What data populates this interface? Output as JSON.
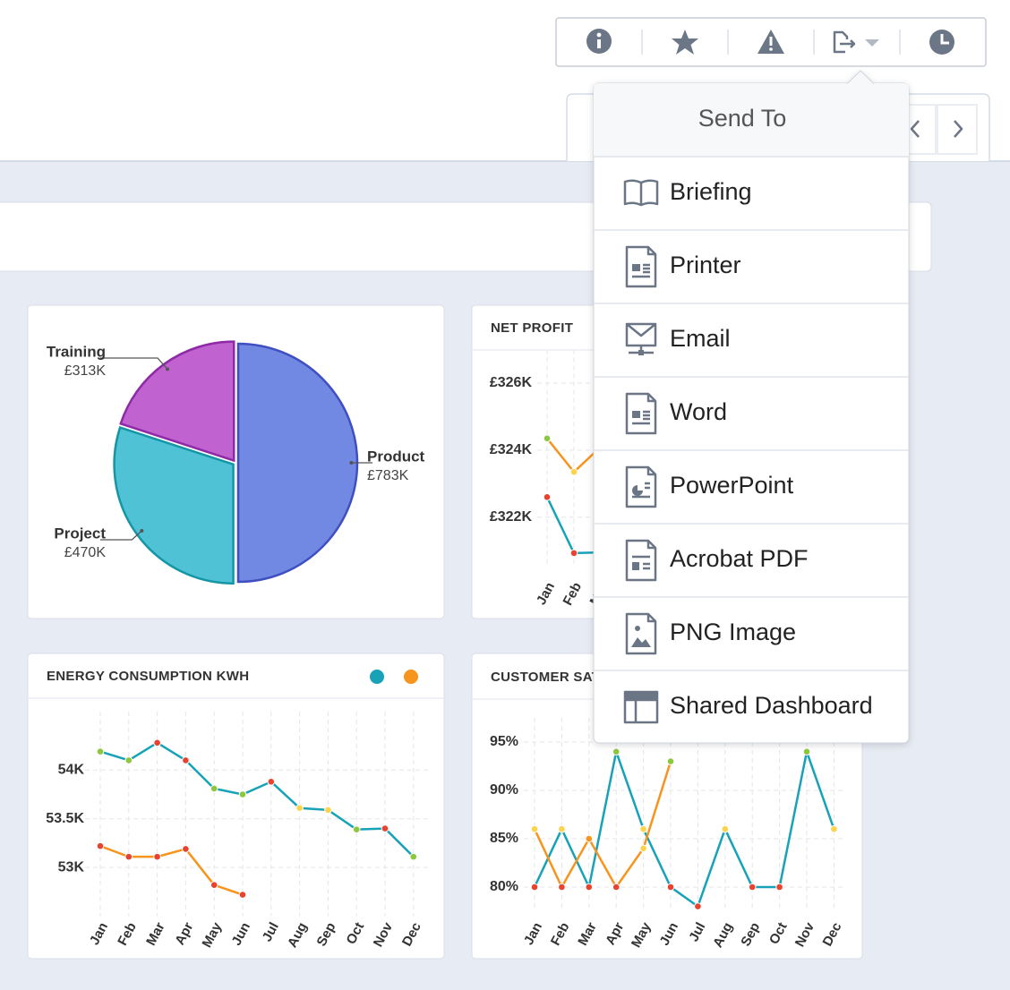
{
  "menu": {
    "title": "Send To",
    "items": [
      "Briefing",
      "Printer",
      "Email",
      "Word",
      "PowerPoint",
      "Acrobat PDF",
      "PNG Image",
      "Shared Dashboard"
    ]
  },
  "chart_data": [
    {
      "type": "pie",
      "categories": [
        "Product",
        "Project",
        "Training"
      ],
      "values": [
        783000,
        470000,
        313000
      ],
      "value_labels": [
        "£783K",
        "£470K",
        "£313K"
      ],
      "colors": [
        "#7189e3",
        "#4fc3d5",
        "#c062d0"
      ],
      "stroke_colors": [
        "#3f4fc0",
        "#1596a6",
        "#8e2aa6"
      ]
    },
    {
      "type": "line",
      "title": "NET PROFIT",
      "categories": [
        "Jan",
        "Feb",
        "Mar"
      ],
      "series": [
        {
          "color": "#f7941d",
          "values": [
            324350,
            323350,
            324100
          ],
          "point_colors": [
            "#8dc63f",
            "#fcd34d",
            "#fcd34d"
          ]
        },
        {
          "color": "#17a2b8",
          "values": [
            322600,
            320930,
            320950
          ],
          "point_colors": [
            "#e8432e",
            "#e8432e",
            "#e8432e"
          ]
        }
      ],
      "ylim": [
        320500,
        327000
      ],
      "yticks": [
        {
          "value": 322000,
          "label": "£322K"
        },
        {
          "value": 324000,
          "label": "£324K"
        },
        {
          "value": 326000,
          "label": "£326K"
        }
      ],
      "grid": true
    },
    {
      "type": "line",
      "title": "ENERGY CONSUMPTION KWH",
      "categories": [
        "Jan",
        "Feb",
        "Mar",
        "Apr",
        "May",
        "Jun",
        "Jul",
        "Aug",
        "Sep",
        "Oct",
        "Nov",
        "Dec"
      ],
      "series": [
        {
          "color": "#17a2b8",
          "values": [
            54190,
            54100,
            54280,
            54100,
            53810,
            53750,
            53880,
            53610,
            53590,
            53390,
            53400,
            53110
          ],
          "point_colors": [
            "#8dc63f",
            "#8dc63f",
            "#e8432e",
            "#e8432e",
            "#8dc63f",
            "#8dc63f",
            "#e8432e",
            "#fcd34d",
            "#fcd34d",
            "#8dc63f",
            "#e8432e",
            "#8dc63f"
          ]
        },
        {
          "color": "#f7941d",
          "values": [
            53220,
            53110,
            53110,
            53190,
            52820,
            52720,
            null,
            null,
            null,
            null,
            null,
            null
          ],
          "point_colors": [
            "#e8432e",
            "#e8432e",
            "#e8432e",
            "#e8432e",
            "#e8432e",
            "#e8432e",
            null,
            null,
            null,
            null,
            null,
            null
          ]
        }
      ],
      "ylim": [
        52500,
        54600
      ],
      "yticks": [
        {
          "value": 53000,
          "label": "53K"
        },
        {
          "value": 53500,
          "label": "53.5K"
        },
        {
          "value": 54000,
          "label": "54K"
        }
      ],
      "grid": true,
      "legend": "top-right"
    },
    {
      "type": "line",
      "title": "CUSTOMER SAT",
      "categories": [
        "Jan",
        "Feb",
        "Mar",
        "Apr",
        "May",
        "Jun",
        "Jul",
        "Aug",
        "Sep",
        "Oct",
        "Nov",
        "Dec"
      ],
      "series": [
        {
          "color": "#17a2b8",
          "values": [
            80,
            86,
            80,
            94,
            86,
            80,
            78,
            86,
            80,
            80,
            94,
            86
          ],
          "point_colors": [
            "#e8432e",
            "#fcd34d",
            "#e8432e",
            "#8dc63f",
            "#fcd34d",
            "#e8432e",
            "#e8432e",
            "#fcd34d",
            "#e8432e",
            "#e8432e",
            "#8dc63f",
            "#fcd34d"
          ]
        },
        {
          "color": "#f7941d",
          "values": [
            86,
            80,
            85,
            80,
            84,
            93,
            null,
            null,
            null,
            null,
            null,
            null
          ],
          "point_colors": [
            "#fcd34d",
            "#e8432e",
            "#f7941d",
            "#e8432e",
            "#fcd34d",
            "#8dc63f",
            null,
            null,
            null,
            null,
            null,
            null
          ]
        }
      ],
      "ylim": [
        77.5,
        97.5
      ],
      "yticks": [
        {
          "value": 80,
          "label": "80%"
        },
        {
          "value": 85,
          "label": "85%"
        },
        {
          "value": 90,
          "label": "90%"
        },
        {
          "value": 95,
          "label": "95%"
        }
      ],
      "grid": true
    }
  ]
}
